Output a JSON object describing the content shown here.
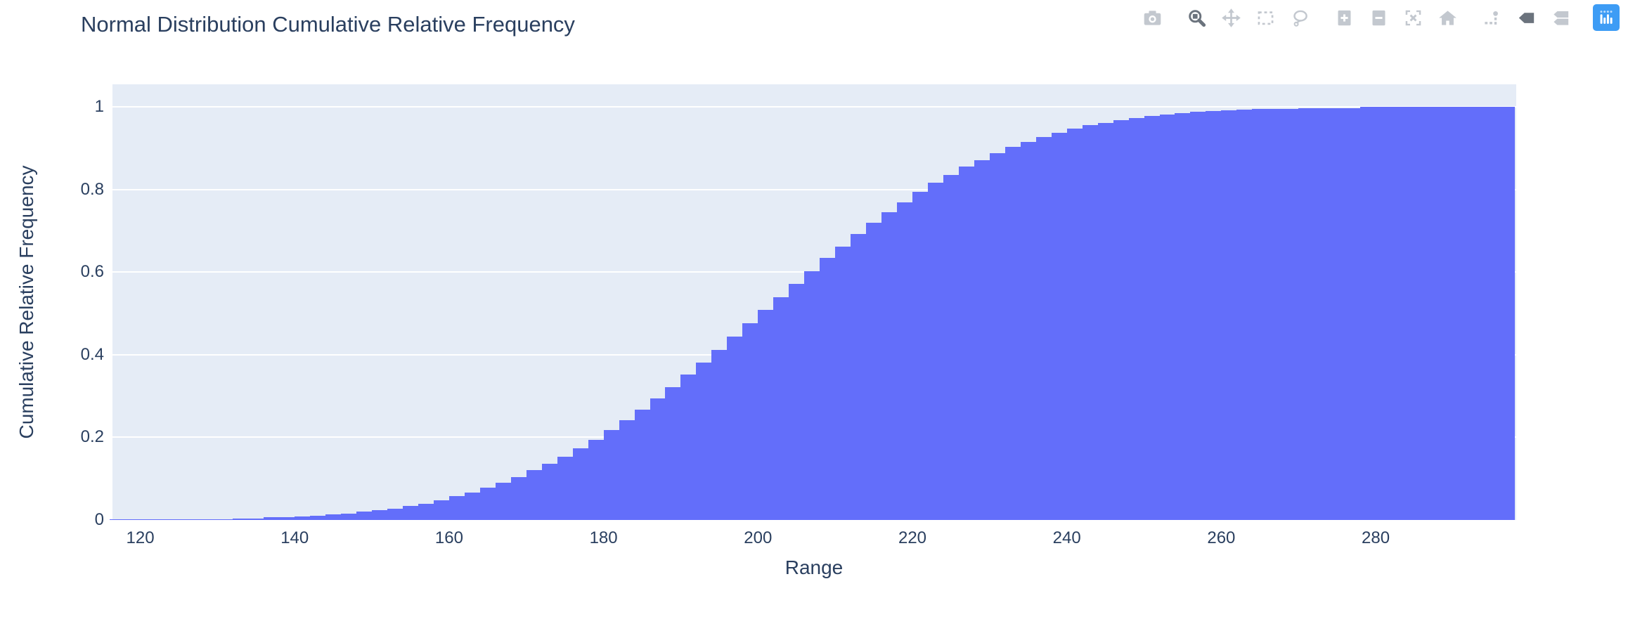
{
  "title": "Normal Distribution Cumulative Relative Frequency",
  "colors": {
    "bar": "#636efa",
    "plot_background": "#e5ecf6",
    "gridline": "#ffffff",
    "text": "#2a3f5f",
    "modebar_icon": "#c3c8cf",
    "modebar_icon_active": "#6b737d",
    "plotly_logo_blue": "#3d9cf5"
  },
  "modebar": {
    "icons": [
      {
        "name": "camera-icon",
        "active": false
      },
      {
        "name": "zoom-icon",
        "active": true
      },
      {
        "name": "pan-icon",
        "active": false
      },
      {
        "name": "box-select-icon",
        "active": false
      },
      {
        "name": "lasso-select-icon",
        "active": false
      },
      {
        "name": "zoom-in-icon",
        "active": false
      },
      {
        "name": "zoom-out-icon",
        "active": false
      },
      {
        "name": "autoscale-icon",
        "active": false
      },
      {
        "name": "reset-axes-home-icon",
        "active": false
      },
      {
        "name": "toggle-spikelines-icon",
        "active": false
      },
      {
        "name": "hover-closest-icon",
        "active": true
      },
      {
        "name": "hover-compare-icon",
        "active": false
      },
      {
        "name": "plotly-logo-icon",
        "active": false
      }
    ]
  },
  "chart_data": {
    "type": "bar",
    "subtype": "cumulative-histogram",
    "title": "Normal Distribution Cumulative Relative Frequency",
    "xlabel": "Range",
    "ylabel": "Cumulative Relative Frequency",
    "bar_color": "#636efa",
    "grid": true,
    "legend": false,
    "xlim": [
      116.4,
      298.2
    ],
    "ylim": [
      0,
      1.055
    ],
    "x_ticks": [
      120,
      140,
      160,
      180,
      200,
      220,
      240,
      260,
      280
    ],
    "y_ticks": [
      0,
      0.2,
      0.4,
      0.6,
      0.8,
      1
    ],
    "y_tick_labels": [
      "0",
      "0.2",
      "0.4",
      "0.6",
      "0.8",
      "1"
    ],
    "bin_start": 116,
    "bin_width": 2,
    "cumulative_values": [
      0.002,
      0.002,
      0.002,
      0.002,
      0.002,
      0.002,
      0.002,
      0.002,
      0.004,
      0.004,
      0.006,
      0.006,
      0.008,
      0.01,
      0.014,
      0.016,
      0.02,
      0.024,
      0.028,
      0.034,
      0.04,
      0.048,
      0.058,
      0.066,
      0.078,
      0.09,
      0.104,
      0.12,
      0.136,
      0.154,
      0.174,
      0.194,
      0.218,
      0.242,
      0.268,
      0.294,
      0.322,
      0.352,
      0.382,
      0.412,
      0.444,
      0.476,
      0.508,
      0.54,
      0.572,
      0.602,
      0.634,
      0.662,
      0.692,
      0.72,
      0.746,
      0.77,
      0.794,
      0.816,
      0.836,
      0.856,
      0.872,
      0.888,
      0.904,
      0.916,
      0.928,
      0.938,
      0.948,
      0.956,
      0.962,
      0.968,
      0.974,
      0.978,
      0.982,
      0.986,
      0.988,
      0.99,
      0.992,
      0.994,
      0.996,
      0.996,
      0.996,
      0.998,
      0.998,
      0.998,
      0.998,
      1,
      1,
      1,
      1,
      1,
      1,
      1,
      1,
      1,
      1
    ]
  }
}
